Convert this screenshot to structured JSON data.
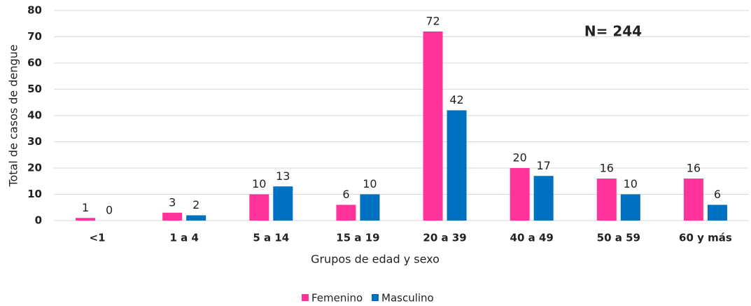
{
  "chart_data": {
    "type": "bar",
    "annotation": "N= 244",
    "x_label": "Grupos de edad y sexo",
    "y_label": "Total de casos de dengue",
    "categories": [
      "<1",
      "1 a 4",
      "5 a 14",
      "15 a 19",
      "20 a 39",
      "40 a 49",
      "50 a 59",
      "60 y más"
    ],
    "series": [
      {
        "name": "Femenino",
        "color": "#ff3399",
        "values": [
          1,
          3,
          10,
          6,
          72,
          20,
          16,
          16
        ]
      },
      {
        "name": "Masculino",
        "color": "#0070c0",
        "values": [
          0,
          2,
          13,
          10,
          42,
          17,
          10,
          6
        ]
      }
    ],
    "ylim": [
      0,
      80
    ],
    "yticks": [
      0,
      10,
      20,
      30,
      40,
      50,
      60,
      70,
      80
    ],
    "grid": true,
    "legend": "bottom"
  }
}
